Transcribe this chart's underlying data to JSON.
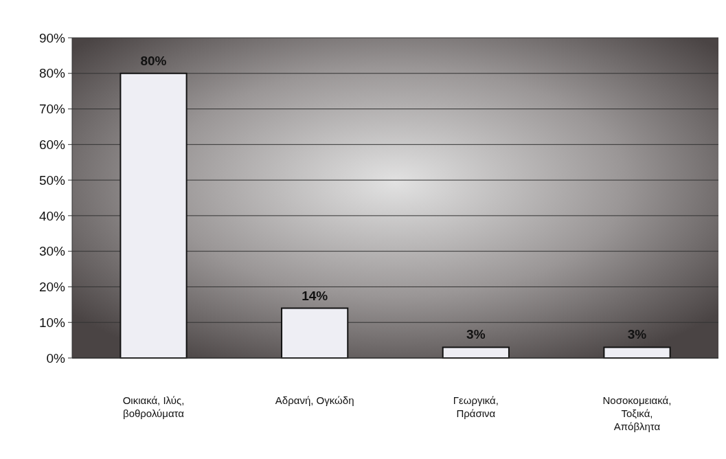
{
  "chart_data": {
    "type": "bar",
    "categories": [
      "Οικιακά, Ιλύς, βοθρολύματα",
      "Αδρανή, Ογκώδη",
      "Γεωργικά, Πράσινα",
      "Νοσοκομειακά, Τοξικά, Απόβλητα"
    ],
    "values": [
      80,
      14,
      3,
      3
    ],
    "color": "#eeeef4",
    "data_labels": true,
    "value_labels": [
      "80%",
      "14%",
      "3%",
      "3%"
    ],
    "ylim": [
      0,
      90
    ],
    "yticks": [
      {
        "value": 0,
        "label": "0%"
      },
      {
        "value": 10,
        "label": "10%"
      },
      {
        "value": 20,
        "label": "20%"
      },
      {
        "value": 30,
        "label": "30%"
      },
      {
        "value": 40,
        "label": "40%"
      },
      {
        "value": 50,
        "label": "50%"
      },
      {
        "value": 60,
        "label": "60%"
      },
      {
        "value": 70,
        "label": "70%"
      },
      {
        "value": 80,
        "label": "80%"
      },
      {
        "value": 90,
        "label": "90%"
      }
    ],
    "grid": "y"
  }
}
